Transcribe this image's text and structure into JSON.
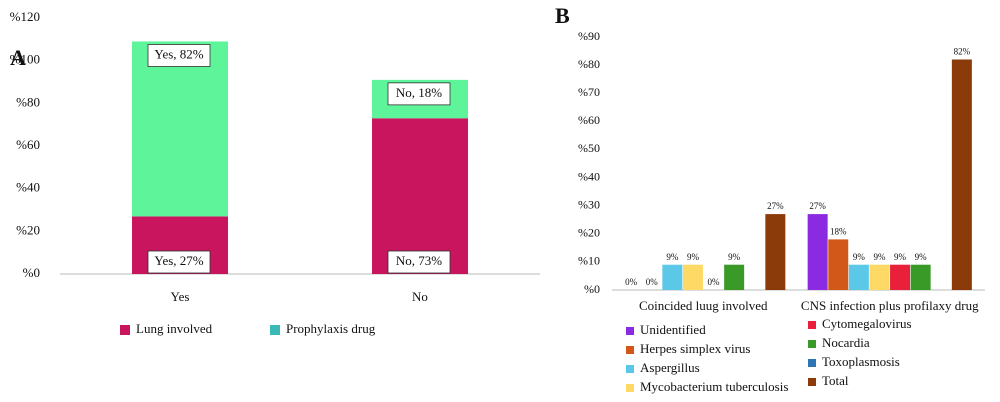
{
  "chart_data": [
    {
      "type": "stacked_bar",
      "panel_label": "A",
      "categories": [
        "Yes",
        "No"
      ],
      "series": [
        {
          "name": "Lung involved",
          "color": "#c8155e",
          "legend_color": "#c8155e",
          "values": [
            27,
            73
          ],
          "value_labels": [
            "Yes, 27%",
            "No, 73%"
          ]
        },
        {
          "name": "Prophylaxis drug",
          "color": "#5ef59a",
          "legend_color": "#3bb8b8",
          "values": [
            82,
            18
          ],
          "value_labels": [
            "Yes, 82%",
            "No, 18%"
          ]
        }
      ],
      "ylim": [
        0,
        120
      ],
      "yticks": [
        {
          "value": 0,
          "label": "%0"
        },
        {
          "value": 20,
          "label": "%20"
        },
        {
          "value": 40,
          "label": "%40"
        },
        {
          "value": 60,
          "label": "%60"
        },
        {
          "value": 80,
          "label": "%80"
        },
        {
          "value": 100,
          "label": "%100"
        },
        {
          "value": 120,
          "label": "%120"
        }
      ],
      "grid": false,
      "legend": "bottom"
    },
    {
      "type": "grouped_bar",
      "panel_label": "B",
      "categories": [
        "Coincided luug involved",
        "CNS infection plus profilaxy drug"
      ],
      "series": [
        {
          "name": "Unidentified",
          "color": "#8a2be2",
          "values": [
            0,
            27
          ],
          "value_labels": [
            "0%",
            "27%"
          ]
        },
        {
          "name": "Herpes simplex virus",
          "color": "#d2581a",
          "values": [
            0,
            18
          ],
          "value_labels": [
            "0%",
            "18%"
          ]
        },
        {
          "name": "Aspergillus",
          "color": "#5bc8e8",
          "values": [
            9,
            9
          ],
          "value_labels": [
            "9%",
            "9%"
          ]
        },
        {
          "name": "Mycobacterium tuberculosis",
          "color": "#ffd966",
          "values": [
            9,
            9
          ],
          "value_labels": [
            "9%",
            "9%"
          ]
        },
        {
          "name": "Cytomegalovirus",
          "color": "#e8203a",
          "values": [
            0,
            9
          ],
          "value_labels": [
            "0%",
            "9%"
          ]
        },
        {
          "name": "Nocardia",
          "color": "#3a9a28",
          "values": [
            9,
            9
          ],
          "value_labels": [
            "9%",
            "9%"
          ]
        },
        {
          "name": "Toxoplasmosis",
          "color": "#2e75b6",
          "values": [
            null,
            null
          ],
          "value_labels": [
            null,
            null
          ]
        },
        {
          "name": "Total",
          "color": "#8b3a0a",
          "values": [
            27,
            82
          ],
          "value_labels": [
            "27%",
            "82%"
          ]
        }
      ],
      "ylim": [
        0,
        90
      ],
      "yticks": [
        {
          "value": 0,
          "label": "%0"
        },
        {
          "value": 10,
          "label": "%10"
        },
        {
          "value": 20,
          "label": "%20"
        },
        {
          "value": 30,
          "label": "%30"
        },
        {
          "value": 40,
          "label": "%40"
        },
        {
          "value": 50,
          "label": "%50"
        },
        {
          "value": 60,
          "label": "%60"
        },
        {
          "value": 70,
          "label": "%70"
        },
        {
          "value": 80,
          "label": "%80"
        },
        {
          "value": 90,
          "label": "%90"
        }
      ],
      "grid": false,
      "legend": "bottom"
    }
  ]
}
